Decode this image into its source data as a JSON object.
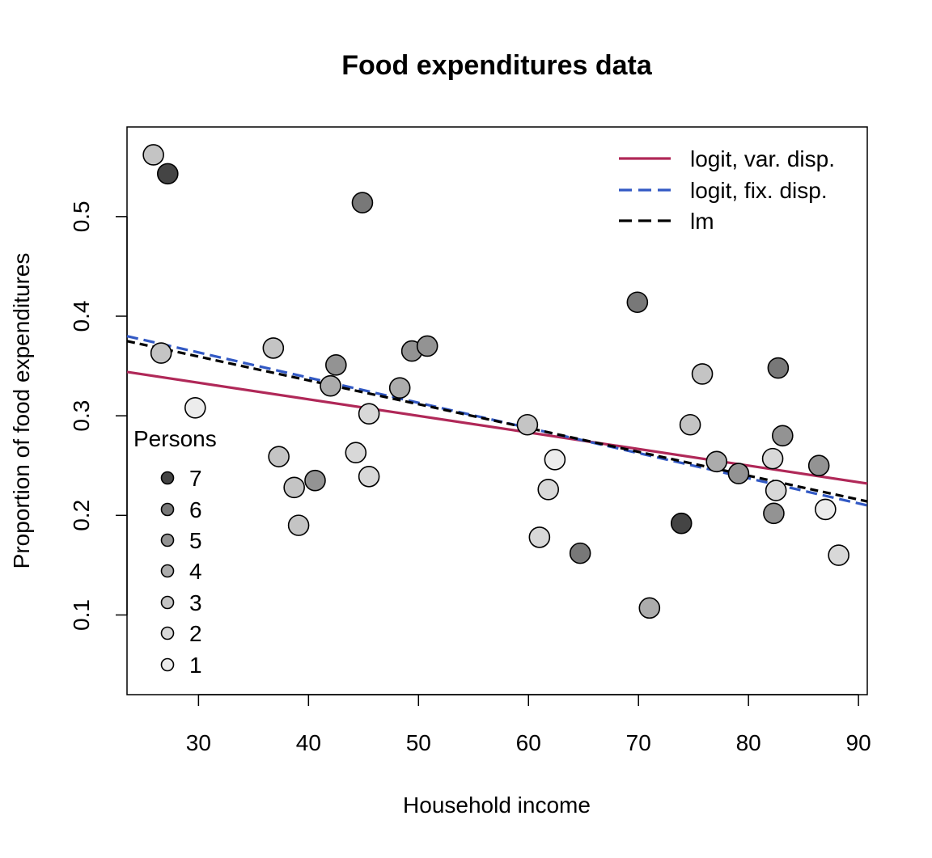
{
  "chart_data": {
    "type": "scatter",
    "title": "Food expenditures data",
    "xlabel": "Household income",
    "ylabel": "Proportion of food expenditures",
    "xlim": [
      23.5,
      90.8
    ],
    "ylim": [
      0.02,
      0.59
    ],
    "xticks": [
      30,
      40,
      50,
      60,
      70,
      80,
      90
    ],
    "yticks": [
      0.1,
      0.2,
      0.3,
      0.4,
      0.5
    ],
    "xtick_labels": [
      "30",
      "40",
      "50",
      "60",
      "70",
      "80",
      "90"
    ],
    "ytick_labels": [
      "0.1",
      "0.2",
      "0.3",
      "0.4",
      "0.5"
    ],
    "grid": false,
    "points": [
      {
        "x": 25.9,
        "y": 0.562,
        "persons": 3
      },
      {
        "x": 27.2,
        "y": 0.543,
        "persons": 7
      },
      {
        "x": 26.6,
        "y": 0.363,
        "persons": 3
      },
      {
        "x": 29.7,
        "y": 0.308,
        "persons": 1
      },
      {
        "x": 36.8,
        "y": 0.368,
        "persons": 3
      },
      {
        "x": 37.3,
        "y": 0.259,
        "persons": 3
      },
      {
        "x": 38.7,
        "y": 0.228,
        "persons": 3
      },
      {
        "x": 39.1,
        "y": 0.19,
        "persons": 3
      },
      {
        "x": 40.6,
        "y": 0.235,
        "persons": 5
      },
      {
        "x": 42.0,
        "y": 0.33,
        "persons": 4
      },
      {
        "x": 42.5,
        "y": 0.351,
        "persons": 5
      },
      {
        "x": 44.3,
        "y": 0.263,
        "persons": 2
      },
      {
        "x": 44.9,
        "y": 0.514,
        "persons": 6
      },
      {
        "x": 45.5,
        "y": 0.302,
        "persons": 2
      },
      {
        "x": 45.5,
        "y": 0.239,
        "persons": 2
      },
      {
        "x": 48.3,
        "y": 0.328,
        "persons": 4
      },
      {
        "x": 49.4,
        "y": 0.365,
        "persons": 5
      },
      {
        "x": 50.8,
        "y": 0.37,
        "persons": 5
      },
      {
        "x": 59.9,
        "y": 0.291,
        "persons": 3
      },
      {
        "x": 61.0,
        "y": 0.178,
        "persons": 2
      },
      {
        "x": 61.8,
        "y": 0.226,
        "persons": 2
      },
      {
        "x": 62.4,
        "y": 0.256,
        "persons": 1
      },
      {
        "x": 64.7,
        "y": 0.162,
        "persons": 6
      },
      {
        "x": 69.9,
        "y": 0.414,
        "persons": 6
      },
      {
        "x": 71.0,
        "y": 0.107,
        "persons": 4
      },
      {
        "x": 73.9,
        "y": 0.192,
        "persons": 7
      },
      {
        "x": 74.7,
        "y": 0.291,
        "persons": 3
      },
      {
        "x": 75.8,
        "y": 0.342,
        "persons": 3
      },
      {
        "x": 77.1,
        "y": 0.254,
        "persons": 4
      },
      {
        "x": 79.1,
        "y": 0.242,
        "persons": 5
      },
      {
        "x": 82.2,
        "y": 0.257,
        "persons": 2
      },
      {
        "x": 82.3,
        "y": 0.202,
        "persons": 5
      },
      {
        "x": 82.5,
        "y": 0.225,
        "persons": 2
      },
      {
        "x": 82.7,
        "y": 0.348,
        "persons": 6
      },
      {
        "x": 83.1,
        "y": 0.28,
        "persons": 5
      },
      {
        "x": 86.4,
        "y": 0.25,
        "persons": 5
      },
      {
        "x": 87.0,
        "y": 0.206,
        "persons": 1
      },
      {
        "x": 88.2,
        "y": 0.16,
        "persons": 2
      }
    ],
    "persons_fill": {
      "1": "#ececec",
      "2": "#d8d8d8",
      "3": "#c4c4c4",
      "4": "#acacac",
      "5": "#939393",
      "6": "#787878",
      "7": "#444444"
    },
    "lines": [
      {
        "name": "logit, var. disp.",
        "color": "#b02858",
        "dash": "solid",
        "x": [
          23.5,
          90.8
        ],
        "y": [
          0.344,
          0.232
        ]
      },
      {
        "name": "logit, fix. disp.",
        "color": "#3259c4",
        "dash": "dashed",
        "x": [
          23.5,
          90.8
        ],
        "y": [
          0.38,
          0.21
        ]
      },
      {
        "name": "lm",
        "color": "#000000",
        "dash": "dashed",
        "x": [
          23.5,
          90.8
        ],
        "y": [
          0.375,
          0.214
        ]
      }
    ],
    "legend_lines": {
      "placement": "top-right",
      "entries": [
        "logit, var. disp.",
        "logit, fix. disp.",
        "lm"
      ]
    },
    "legend_persons": {
      "placement": "bottom-left",
      "title": "Persons",
      "entries": [
        "7",
        "6",
        "5",
        "4",
        "3",
        "2",
        "1"
      ]
    }
  }
}
